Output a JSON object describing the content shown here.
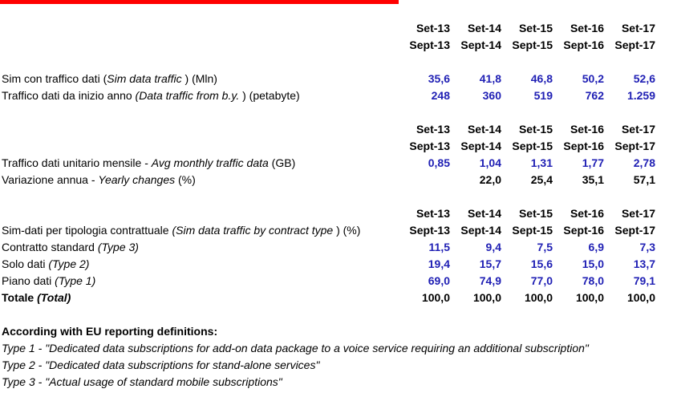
{
  "colors": {
    "accent_bar": "#ff0000",
    "value_blue": "#1f1fb4"
  },
  "headers": {
    "it": [
      "Set-13",
      "Set-14",
      "Set-15",
      "Set-16",
      "Set-17"
    ],
    "en": [
      "Sept-13",
      "Sept-14",
      "Sept-15",
      "Sept-16",
      "Sept-17"
    ]
  },
  "rows": {
    "sim_traffic": {
      "label_a": "Sim con traffico dati ",
      "label_b": "Sim data traffic",
      "label_c": " ) (Mln)",
      "label_pre": "(",
      "values": [
        "35,6",
        "41,8",
        "46,8",
        "50,2",
        "52,6"
      ]
    },
    "data_traffic": {
      "label_a": "Traffico dati da inizio anno ",
      "label_b": "(Data traffic from b.y.",
      "label_c": " ) (petabyte)",
      "values": [
        "248",
        "360",
        "519",
        "762",
        "1.259"
      ]
    },
    "avg_monthly": {
      "label_a": "Traffico dati unitario mensile - ",
      "label_b": "Avg monthly traffic data",
      "label_c": "  (GB)",
      "values": [
        "0,85",
        "1,04",
        "1,31",
        "1,77",
        "2,78"
      ]
    },
    "yearly_change": {
      "label_a": "Variazione annua  - ",
      "label_b": "Yearly changes",
      "label_c": "  (%)",
      "values": [
        "",
        "22,0",
        "25,4",
        "35,1",
        "57,1"
      ]
    },
    "contract_type": {
      "label_a": "Sim-dati per tipologia contrattuale ",
      "label_b": "(Sim data traffic by contract type",
      "label_c": " ) (%)"
    },
    "type3": {
      "label_a": "Contratto standard ",
      "label_b": "(Type 3)",
      "values": [
        "11,5",
        "9,4",
        "7,5",
        "6,9",
        "7,3"
      ]
    },
    "type2": {
      "label_a": "Solo dati ",
      "label_b": "(Type 2)",
      "values": [
        "19,4",
        "15,7",
        "15,6",
        "15,0",
        "13,7"
      ]
    },
    "type1": {
      "label_a": "Piano dati ",
      "label_b": "(Type 1)",
      "values": [
        "69,0",
        "74,9",
        "77,0",
        "78,0",
        "79,1"
      ]
    },
    "total": {
      "label_a": "Totale ",
      "label_b": "(Total)",
      "values": [
        "100,0",
        "100,0",
        "100,0",
        "100,0",
        "100,0"
      ]
    }
  },
  "notes": {
    "title": "According with EU reporting definitions:",
    "type1": "Type 1 - \"Dedicated data subscriptions for add-on data package to a voice service requiring an additional subscription\"",
    "type2": "Type 2 - \"Dedicated data subscriptions for stand-alone services\"",
    "type3": "Type 3 - \"Actual usage of standard mobile subscriptions\""
  }
}
